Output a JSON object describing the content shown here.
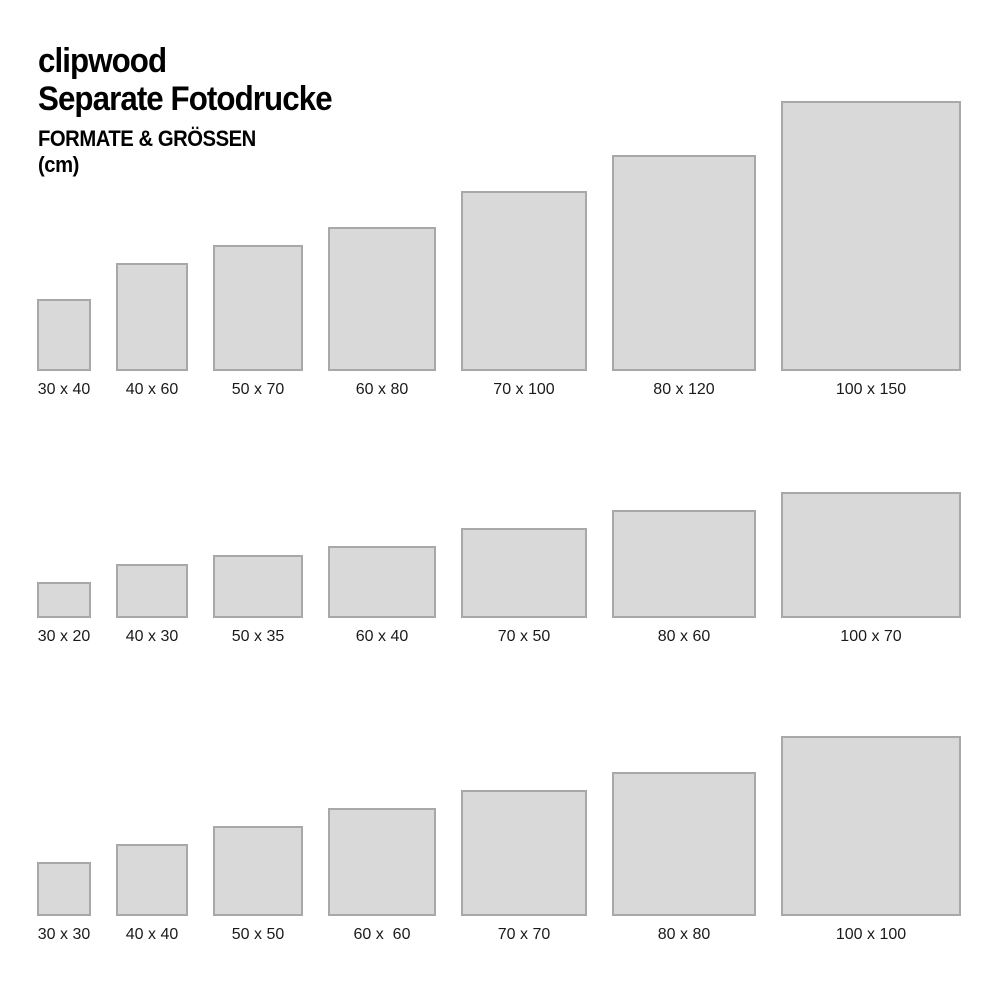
{
  "header": {
    "brand": "clipwood",
    "title": "Separate Fotodrucke",
    "subtitle": "FORMATE & GRÖSSEN",
    "unit": "(cm)"
  },
  "colors": {
    "background": "#ffffff",
    "rect_fill": "#d9d9d9",
    "rect_border": "#a8a8a8",
    "text": "#000000"
  },
  "rows": [
    {
      "name": "portrait-formats",
      "items": [
        {
          "label": "30 x 40",
          "width_cm": 30,
          "height_cm": 40
        },
        {
          "label": "40 x 60",
          "width_cm": 40,
          "height_cm": 60
        },
        {
          "label": "50 x 70",
          "width_cm": 50,
          "height_cm": 70
        },
        {
          "label": "60 x 80",
          "width_cm": 60,
          "height_cm": 80
        },
        {
          "label": "70 x 100",
          "width_cm": 70,
          "height_cm": 100
        },
        {
          "label": "80 x 120",
          "width_cm": 80,
          "height_cm": 120
        },
        {
          "label": "100 x 150",
          "width_cm": 100,
          "height_cm": 150
        }
      ]
    },
    {
      "name": "landscape-formats",
      "items": [
        {
          "label": "30 x 20",
          "width_cm": 30,
          "height_cm": 20
        },
        {
          "label": "40 x 30",
          "width_cm": 40,
          "height_cm": 30
        },
        {
          "label": "50 x 35",
          "width_cm": 50,
          "height_cm": 35
        },
        {
          "label": "60 x 40",
          "width_cm": 60,
          "height_cm": 40
        },
        {
          "label": "70 x 50",
          "width_cm": 70,
          "height_cm": 50
        },
        {
          "label": "80 x 60",
          "width_cm": 80,
          "height_cm": 60
        },
        {
          "label": "100 x 70",
          "width_cm": 100,
          "height_cm": 70
        }
      ]
    },
    {
      "name": "square-formats",
      "items": [
        {
          "label": "30 x 30",
          "width_cm": 30,
          "height_cm": 30
        },
        {
          "label": "40 x 40",
          "width_cm": 40,
          "height_cm": 40
        },
        {
          "label": "50 x 50",
          "width_cm": 50,
          "height_cm": 50
        },
        {
          "label": "60 x  60",
          "width_cm": 60,
          "height_cm": 60
        },
        {
          "label": "70 x 70",
          "width_cm": 70,
          "height_cm": 70
        },
        {
          "label": "80 x 80",
          "width_cm": 80,
          "height_cm": 80
        },
        {
          "label": "100 x 100",
          "width_cm": 100,
          "height_cm": 100
        }
      ]
    }
  ]
}
